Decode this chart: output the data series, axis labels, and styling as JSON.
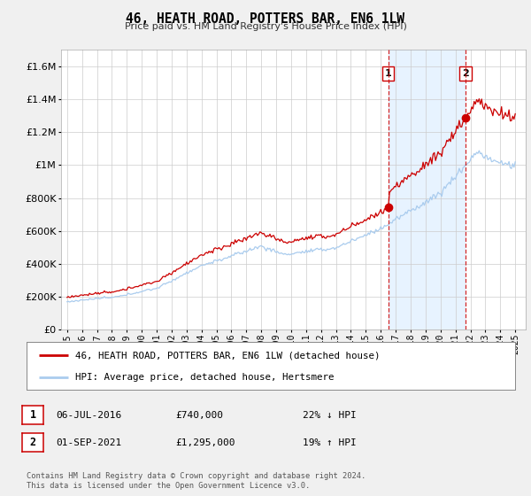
{
  "title": "46, HEATH ROAD, POTTERS BAR, EN6 1LW",
  "subtitle": "Price paid vs. HM Land Registry's House Price Index (HPI)",
  "ylim": [
    0,
    1700000
  ],
  "yticks": [
    0,
    200000,
    400000,
    600000,
    800000,
    1000000,
    1200000,
    1400000,
    1600000
  ],
  "xlabel_years": [
    "1995",
    "1996",
    "1997",
    "1998",
    "1999",
    "2000",
    "2001",
    "2002",
    "2003",
    "2004",
    "2005",
    "2006",
    "2007",
    "2008",
    "2009",
    "2010",
    "2011",
    "2012",
    "2013",
    "2014",
    "2015",
    "2016",
    "2017",
    "2018",
    "2019",
    "2020",
    "2021",
    "2022",
    "2023",
    "2024",
    "2025"
  ],
  "sale1_year": 2016.5,
  "sale1_price": 740000,
  "sale2_year": 2021.67,
  "sale2_price": 1295000,
  "line_color_property": "#cc0000",
  "line_color_hpi": "#aaccee",
  "shade_color": "#ddeeff",
  "dashed_color": "#cc0000",
  "legend_property": "46, HEATH ROAD, POTTERS BAR, EN6 1LW (detached house)",
  "legend_hpi": "HPI: Average price, detached house, Hertsmere",
  "annotation1_date": "06-JUL-2016",
  "annotation1_price": "£740,000",
  "annotation1_hpi": "22% ↓ HPI",
  "annotation2_date": "01-SEP-2021",
  "annotation2_price": "£1,295,000",
  "annotation2_hpi": "19% ↑ HPI",
  "footer": "Contains HM Land Registry data © Crown copyright and database right 2024.\nThis data is licensed under the Open Government Licence v3.0.",
  "background_color": "#f0f0f0",
  "plot_bg_color": "#ffffff"
}
